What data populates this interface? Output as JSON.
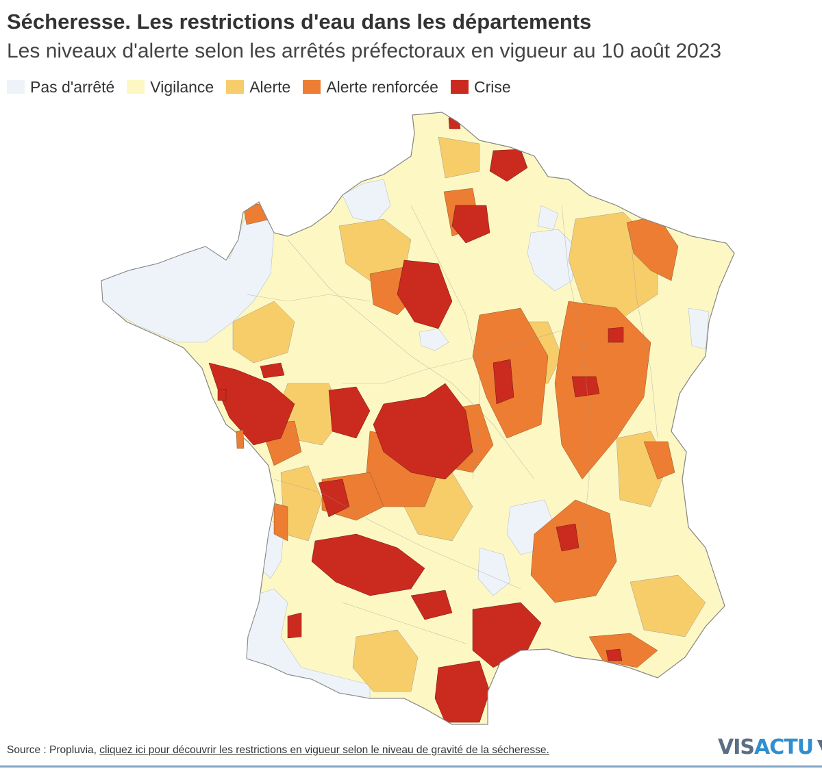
{
  "title": "Sécheresse. Les restrictions d'eau dans les départements",
  "subtitle": "Les niveaux d'alerte selon les arrêtés préfectoraux en vigueur au 10 août 2023",
  "legend": [
    {
      "label": "Pas d'arrêté",
      "color": "#eef3fa"
    },
    {
      "label": "Vigilance",
      "color": "#fdf8c3"
    },
    {
      "label": "Alerte",
      "color": "#f7cd6a"
    },
    {
      "label": "Alerte renforcée",
      "color": "#ec7d32"
    },
    {
      "label": "Crise",
      "color": "#cb2a1f"
    }
  ],
  "map": {
    "region": "France métropolitaine",
    "border_color": "#8a8a8a"
  },
  "footer": {
    "source": "Source : Propluvia, ",
    "link": "cliquez ici pour découvrir les restrictions en vigueur selon le niveau de gravité de la sécheresse."
  },
  "logo": {
    "part1": "VIS",
    "part2": "ACTU",
    "color1": "#5a6f85",
    "color2": "#2f8fcf"
  }
}
